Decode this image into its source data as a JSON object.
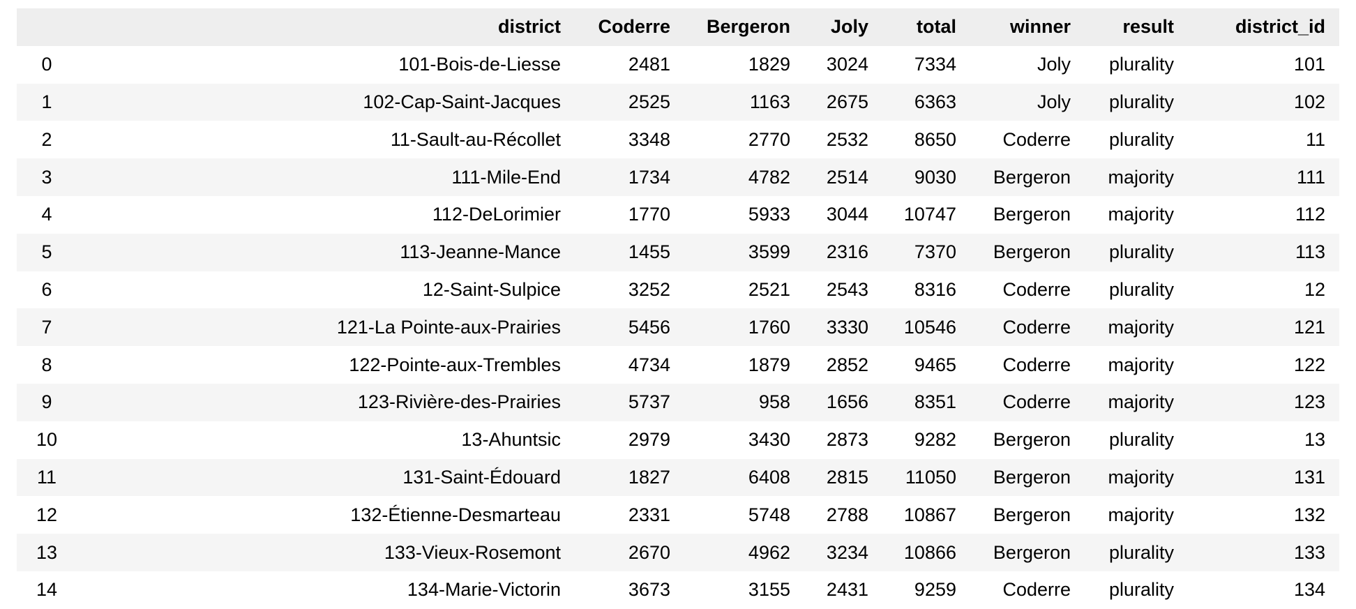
{
  "columns": [
    "",
    "district",
    "Coderre",
    "Bergeron",
    "Joly",
    "total",
    "winner",
    "result",
    "district_id"
  ],
  "rows": [
    [
      "0",
      "101-Bois-de-Liesse",
      "2481",
      "1829",
      "3024",
      "7334",
      "Joly",
      "plurality",
      "101"
    ],
    [
      "1",
      "102-Cap-Saint-Jacques",
      "2525",
      "1163",
      "2675",
      "6363",
      "Joly",
      "plurality",
      "102"
    ],
    [
      "2",
      "11-Sault-au-Récollet",
      "3348",
      "2770",
      "2532",
      "8650",
      "Coderre",
      "plurality",
      "11"
    ],
    [
      "3",
      "111-Mile-End",
      "1734",
      "4782",
      "2514",
      "9030",
      "Bergeron",
      "majority",
      "111"
    ],
    [
      "4",
      "112-DeLorimier",
      "1770",
      "5933",
      "3044",
      "10747",
      "Bergeron",
      "majority",
      "112"
    ],
    [
      "5",
      "113-Jeanne-Mance",
      "1455",
      "3599",
      "2316",
      "7370",
      "Bergeron",
      "plurality",
      "113"
    ],
    [
      "6",
      "12-Saint-Sulpice",
      "3252",
      "2521",
      "2543",
      "8316",
      "Coderre",
      "plurality",
      "12"
    ],
    [
      "7",
      "121-La Pointe-aux-Prairies",
      "5456",
      "1760",
      "3330",
      "10546",
      "Coderre",
      "majority",
      "121"
    ],
    [
      "8",
      "122-Pointe-aux-Trembles",
      "4734",
      "1879",
      "2852",
      "9465",
      "Coderre",
      "majority",
      "122"
    ],
    [
      "9",
      "123-Rivière-des-Prairies",
      "5737",
      "958",
      "1656",
      "8351",
      "Coderre",
      "majority",
      "123"
    ],
    [
      "10",
      "13-Ahuntsic",
      "2979",
      "3430",
      "2873",
      "9282",
      "Bergeron",
      "plurality",
      "13"
    ],
    [
      "11",
      "131-Saint-Édouard",
      "1827",
      "6408",
      "2815",
      "11050",
      "Bergeron",
      "majority",
      "131"
    ],
    [
      "12",
      "132-Étienne-Desmarteau",
      "2331",
      "5748",
      "2788",
      "10867",
      "Bergeron",
      "majority",
      "132"
    ],
    [
      "13",
      "133-Vieux-Rosemont",
      "2670",
      "4962",
      "3234",
      "10866",
      "Bergeron",
      "plurality",
      "133"
    ],
    [
      "14",
      "134-Marie-Victorin",
      "3673",
      "3155",
      "2431",
      "9259",
      "Coderre",
      "plurality",
      "134"
    ]
  ]
}
